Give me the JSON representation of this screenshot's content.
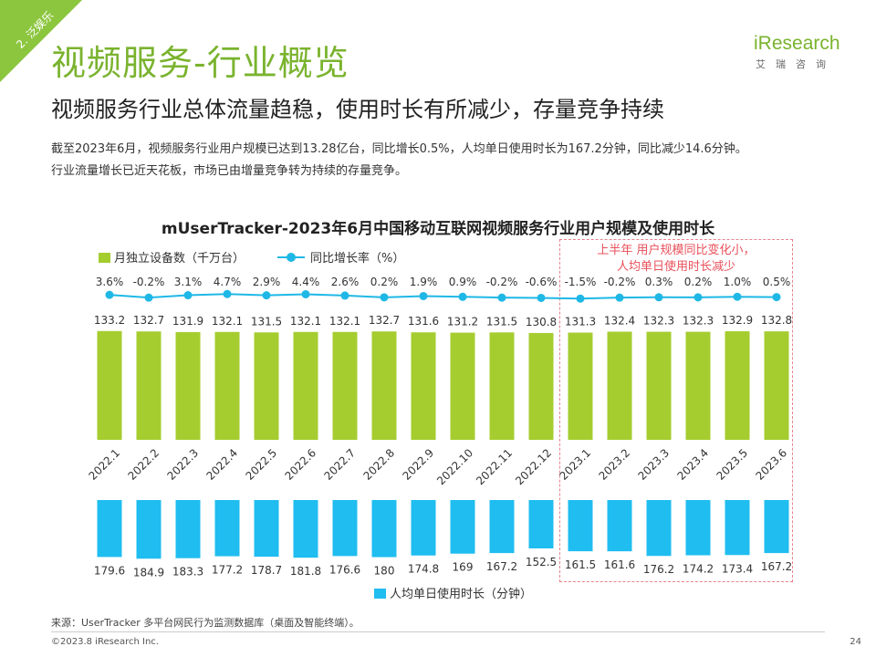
{
  "section_tag": "2. 泛娱乐",
  "page_title": "视频服务-行业概览",
  "page_subtitle": "视频服务行业总体流量趋稳，使用时长有所减少，存量竞争持续",
  "description": [
    "截至2023年6月，视频服务行业用户规模已达到13.28亿台，同比增长0.5%，人均单日使用时长为167.2分钟，同比减少14.6分钟。",
    "行业流量增长已近天花板，市场已由增量竞争转为持续的存量竞争。"
  ],
  "logo": {
    "main": "iResearch",
    "sub": "艾瑞咨询"
  },
  "colors": {
    "accent": "#8cc63f",
    "bar_green": "#a5cd2f",
    "line_blue": "#1fb8e6",
    "bar_blue": "#1fbdf0",
    "annotation": "#e8505b"
  },
  "chart_data": {
    "type": "bar",
    "title": "mUserTracker-2023年6月中国移动互联网视频服务行业用户规模及使用时长",
    "categories": [
      "2022.1",
      "2022.2",
      "2022.3",
      "2022.4",
      "2022.5",
      "2022.6",
      "2022.7",
      "2022.8",
      "2022.9",
      "2022.10",
      "2022.11",
      "2022.12",
      "2023.1",
      "2023.2",
      "2023.3",
      "2023.4",
      "2023.5",
      "2023.6"
    ],
    "series": [
      {
        "name": "月独立设备数（千万台）",
        "type": "bar",
        "values": [
          133.2,
          132.7,
          131.9,
          132.1,
          131.5,
          132.1,
          132.1,
          132.7,
          131.6,
          131.2,
          131.5,
          130.8,
          131.3,
          132.4,
          132.3,
          132.3,
          132.9,
          132.8
        ]
      },
      {
        "name": "同比增长率（%）",
        "type": "line",
        "values": [
          3.6,
          -0.2,
          3.1,
          4.7,
          2.9,
          4.4,
          2.6,
          0.2,
          1.9,
          0.9,
          -0.2,
          -0.6,
          -1.5,
          -0.2,
          0.3,
          0.2,
          1.0,
          0.5
        ],
        "labels": [
          "3.6%",
          "-0.2%",
          "3.1%",
          "4.7%",
          "2.9%",
          "4.4%",
          "2.6%",
          "0.2%",
          "1.9%",
          "0.9%",
          "-0.2%",
          "-0.6%",
          "-1.5%",
          "-0.2%",
          "0.3%",
          "0.2%",
          "1.0%",
          "0.5%"
        ]
      },
      {
        "name": "人均单日使用时长（分钟）",
        "type": "bar",
        "values": [
          179.6,
          184.9,
          183.3,
          177.2,
          178.7,
          181.8,
          176.6,
          180.0,
          174.8,
          169.0,
          167.2,
          152.5,
          161.5,
          161.6,
          176.2,
          174.2,
          173.4,
          167.2
        ]
      }
    ],
    "annotation": [
      "上半年 用户规模同比变化小，",
      "人均单日使用时长减少"
    ],
    "legend_position": "top-left"
  },
  "footer": {
    "source": "来源：UserTracker 多平台网民行为监测数据库（桌面及智能终端）。",
    "copyright": "©2023.8 iResearch Inc.",
    "page": "24"
  }
}
